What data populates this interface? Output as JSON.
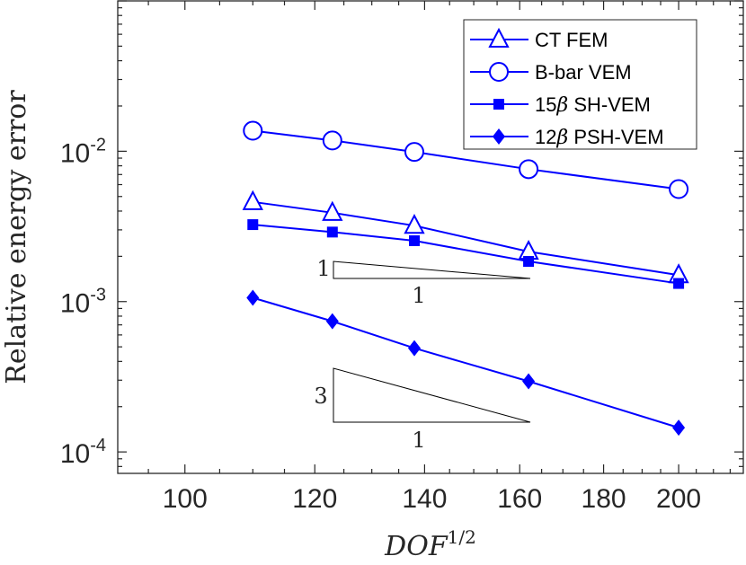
{
  "chart_data": {
    "type": "line",
    "xscale": "log",
    "yscale": "log",
    "xlabel": "DOF^{1/2}",
    "xlabel_base": "DOF",
    "xlabel_exp": "1/2",
    "ylabel": "Relative energy error",
    "xlim": [
      91,
      219
    ],
    "ylim": [
      7.2e-05,
      0.1
    ],
    "xticks": [
      100,
      120,
      140,
      160,
      180,
      200
    ],
    "xtick_labels": [
      "100",
      "120",
      "140",
      "160",
      "180",
      "200"
    ],
    "yticks": [
      0.0001,
      0.001,
      0.01
    ],
    "ytick_labels": [
      {
        "base": "10",
        "exp": "-4"
      },
      {
        "base": "10",
        "exp": "-3"
      },
      {
        "base": "10",
        "exp": "-2"
      }
    ],
    "legend_position": "top-right",
    "x": [
      110,
      123,
      138,
      162,
      200
    ],
    "series": [
      {
        "name": "CT FEM",
        "marker": "triangle-open",
        "color": "#0000FF",
        "values": [
          0.0046,
          0.0039,
          0.0032,
          0.00215,
          0.0015
        ]
      },
      {
        "name": "B-bar VEM",
        "marker": "circle-open",
        "color": "#0000FF",
        "values": [
          0.0137,
          0.0118,
          0.0099,
          0.0076,
          0.0056
        ]
      },
      {
        "name": "15β SH-VEM",
        "name_num": "15",
        "name_rest": " SH-VEM",
        "marker": "square-filled",
        "color": "#0000FF",
        "values": [
          0.00325,
          0.0029,
          0.00254,
          0.00185,
          0.00132
        ]
      },
      {
        "name": "12β PSH-VEM",
        "name_num": "12",
        "name_rest": " PSH-VEM",
        "marker": "diamond-filled",
        "color": "#0000FF",
        "values": [
          0.00106,
          0.00074,
          0.00049,
          0.000295,
          0.000145
        ]
      }
    ],
    "annotations": [
      {
        "type": "slope-triangle",
        "rise_label": "1",
        "run_label": "1"
      },
      {
        "type": "slope-triangle",
        "rise_label": "3",
        "run_label": "1"
      }
    ],
    "beta_symbol": "β"
  }
}
